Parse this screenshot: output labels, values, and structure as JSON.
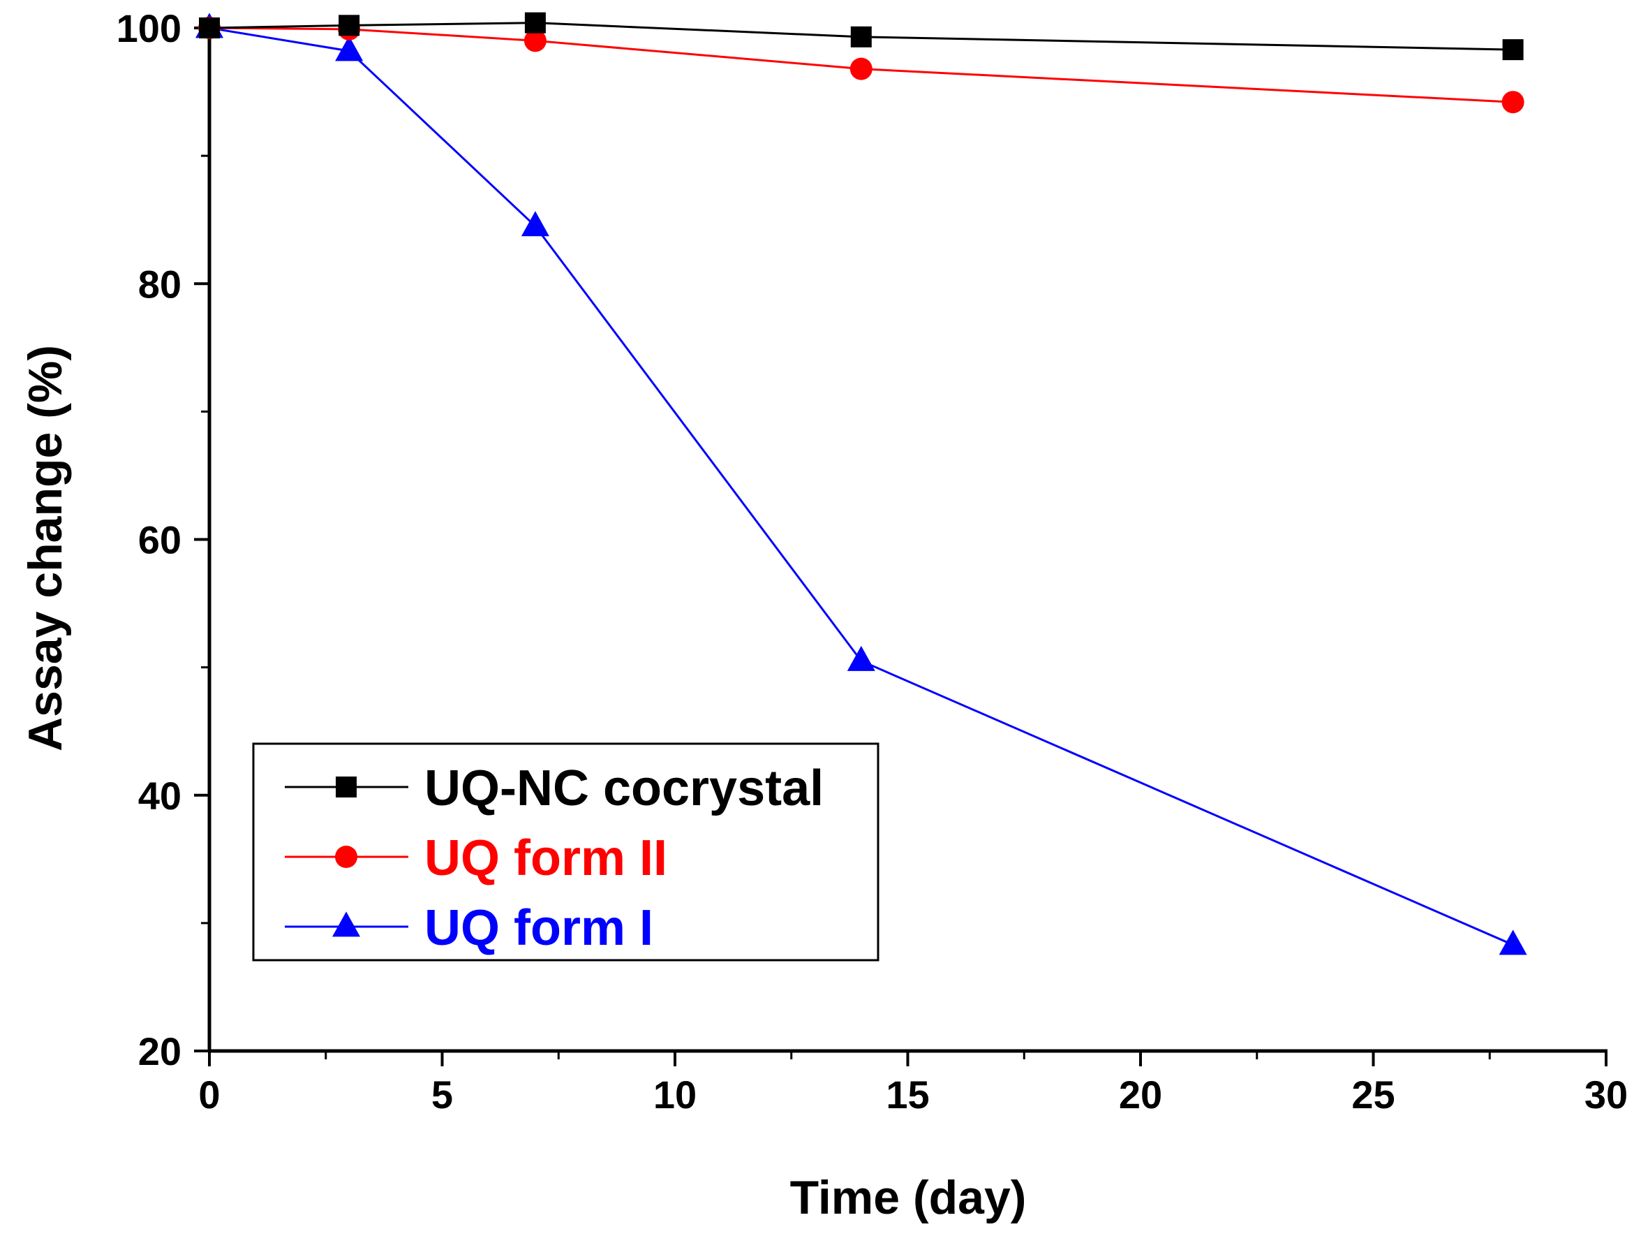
{
  "chart_data": {
    "type": "line",
    "title": "",
    "xlabel": "Time (day)",
    "ylabel": "Assay change (%)",
    "xlim": [
      0,
      30
    ],
    "ylim": [
      20,
      100
    ],
    "xticks": [
      0,
      5,
      10,
      15,
      20,
      25,
      30
    ],
    "xtick_labels": [
      "0",
      "5",
      "10",
      "15",
      "20",
      "25",
      "30"
    ],
    "yticks": [
      20,
      40,
      60,
      80,
      100
    ],
    "ytick_labels": [
      "20",
      "40",
      "60",
      "80",
      "100"
    ],
    "x_minor_step": 2.5,
    "y_minor_step": 10,
    "grid": false,
    "legend_position": "bottom-left",
    "series": [
      {
        "name": "UQ-NC cocrystal",
        "color": "#000000",
        "marker": "square",
        "x": [
          0,
          3,
          7,
          14,
          28
        ],
        "values": [
          100,
          100.2,
          100.4,
          99.3,
          98.3
        ]
      },
      {
        "name": "UQ form II",
        "color": "#ff0000",
        "marker": "circle",
        "x": [
          0,
          3,
          7,
          14,
          28
        ],
        "values": [
          100,
          99.9,
          99.0,
          96.8,
          94.2
        ]
      },
      {
        "name": "UQ form I",
        "color": "#0000ff",
        "marker": "triangle",
        "x": [
          0,
          3,
          7,
          14,
          28
        ],
        "values": [
          100,
          98.2,
          84.5,
          50.5,
          28.3
        ]
      }
    ]
  }
}
